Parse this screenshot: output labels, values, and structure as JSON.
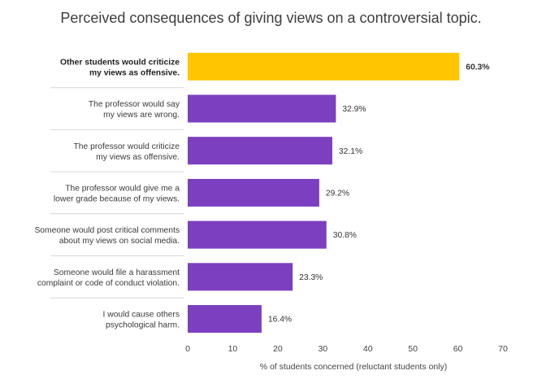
{
  "chart_data": {
    "type": "bar",
    "orientation": "horizontal",
    "title": "Perceived consequences of giving views on a controversial topic.",
    "xlabel": "% of students concerned (reluctant students only)",
    "ylabel": "",
    "xlim": [
      0,
      70
    ],
    "xticks": [
      0,
      10,
      20,
      30,
      40,
      50,
      60,
      70
    ],
    "grid": false,
    "categories": [
      [
        "Other students would criticize",
        "my views as offensive."
      ],
      [
        "The professor would say",
        "my views are wrong."
      ],
      [
        "The professor would criticize",
        "my views as offensive."
      ],
      [
        "The professor would give me a",
        "lower grade because of my views."
      ],
      [
        "Someone would post critical comments",
        "about my views on social media."
      ],
      [
        "Someone would file a harassment",
        "complaint or code of conduct violation."
      ],
      [
        "I would cause others",
        "psychological harm."
      ]
    ],
    "values": [
      60.3,
      32.9,
      32.1,
      29.2,
      30.8,
      23.3,
      16.4
    ],
    "value_labels": [
      "60.3%",
      "32.9%",
      "32.1%",
      "29.2%",
      "30.8%",
      "23.3%",
      "16.4%"
    ],
    "highlight_index": 0,
    "colors": {
      "highlight": "#FFC600",
      "default": "#7B3FBF",
      "separator": "#d6d6d6",
      "axis_text": "#444444"
    }
  }
}
